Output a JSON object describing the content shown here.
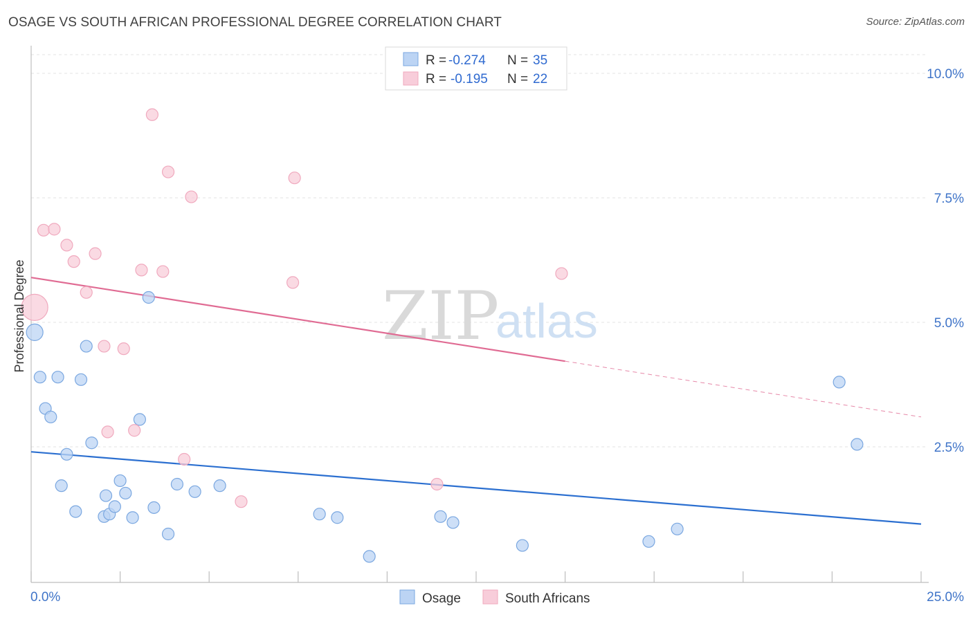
{
  "header": {
    "title": "OSAGE VS SOUTH AFRICAN PROFESSIONAL DEGREE CORRELATION CHART",
    "source": "Source: ZipAtlas.com"
  },
  "watermark": {
    "zip": "ZIP",
    "atlas": "atlas"
  },
  "chart_data": {
    "type": "scatter",
    "title": "OSAGE VS SOUTH AFRICAN PROFESSIONAL DEGREE CORRELATION CHART",
    "xlabel": "",
    "ylabel": "Professional Degree",
    "xlim": [
      0,
      25
    ],
    "ylim": [
      0,
      10.5
    ],
    "x_tick_labels": {
      "min": "0.0%",
      "max": "25.0%"
    },
    "y_ticks": [
      {
        "value": 2.5,
        "label": "2.5%"
      },
      {
        "value": 5.0,
        "label": "5.0%"
      },
      {
        "value": 7.5,
        "label": "7.5%"
      },
      {
        "value": 10.0,
        "label": "10.0%"
      }
    ],
    "legend": {
      "entries": [
        {
          "r_label": "R = ",
          "r_value": "-0.274",
          "n_label": "N = ",
          "n_value": "35"
        },
        {
          "r_label": "R = ",
          "r_value": "-0.195",
          "n_label": "N = ",
          "n_value": "22"
        }
      ]
    },
    "series": [
      {
        "name": "Osage",
        "color": "#7aa7e0",
        "fill": "#bcd4f4",
        "line_color": "#2b6fd0",
        "trend": {
          "x0": 0,
          "y0": 2.4,
          "x1": 25,
          "y1": 0.95
        },
        "points": [
          [
            0.1,
            4.8
          ],
          [
            0.25,
            3.9
          ],
          [
            0.4,
            3.27
          ],
          [
            0.55,
            3.1
          ],
          [
            0.75,
            3.9
          ],
          [
            0.85,
            1.72
          ],
          [
            1.0,
            2.35
          ],
          [
            1.25,
            1.2
          ],
          [
            1.4,
            3.85
          ],
          [
            1.55,
            4.52
          ],
          [
            1.7,
            2.58
          ],
          [
            2.05,
            1.1
          ],
          [
            2.1,
            1.52
          ],
          [
            2.2,
            1.15
          ],
          [
            2.35,
            1.3
          ],
          [
            2.5,
            1.82
          ],
          [
            2.65,
            1.57
          ],
          [
            2.85,
            1.08
          ],
          [
            3.05,
            3.05
          ],
          [
            3.3,
            5.5
          ],
          [
            3.45,
            1.28
          ],
          [
            3.85,
            0.75
          ],
          [
            4.1,
            1.75
          ],
          [
            4.6,
            1.6
          ],
          [
            5.3,
            1.72
          ],
          [
            8.1,
            1.15
          ],
          [
            8.6,
            1.08
          ],
          [
            9.5,
            0.3
          ],
          [
            11.5,
            1.1
          ],
          [
            11.85,
            0.98
          ],
          [
            13.8,
            0.52
          ],
          [
            17.35,
            0.6
          ],
          [
            18.15,
            0.85
          ],
          [
            22.7,
            3.8
          ],
          [
            23.2,
            2.55
          ]
        ]
      },
      {
        "name": "South Africans",
        "color": "#f0a9be",
        "fill": "#f8cdda",
        "line_color": "#e06b93",
        "trend": {
          "x0": 0,
          "y0": 5.9,
          "x1": 15,
          "y1": 4.22
        },
        "trend_dashed": {
          "x0": 15,
          "y0": 4.22,
          "x1": 25,
          "y1": 3.1
        },
        "points": [
          [
            0.1,
            5.3
          ],
          [
            0.35,
            6.85
          ],
          [
            0.65,
            6.87
          ],
          [
            1.0,
            6.55
          ],
          [
            1.2,
            6.22
          ],
          [
            1.55,
            5.6
          ],
          [
            1.8,
            6.38
          ],
          [
            2.05,
            4.52
          ],
          [
            2.15,
            2.8
          ],
          [
            2.6,
            4.47
          ],
          [
            2.9,
            2.83
          ],
          [
            3.1,
            6.05
          ],
          [
            3.4,
            9.17
          ],
          [
            3.7,
            6.02
          ],
          [
            3.85,
            8.02
          ],
          [
            4.3,
            2.25
          ],
          [
            4.5,
            7.52
          ],
          [
            5.9,
            1.4
          ],
          [
            7.35,
            5.8
          ],
          [
            7.4,
            7.9
          ],
          [
            11.4,
            1.75
          ],
          [
            14.9,
            5.98
          ]
        ]
      }
    ]
  }
}
